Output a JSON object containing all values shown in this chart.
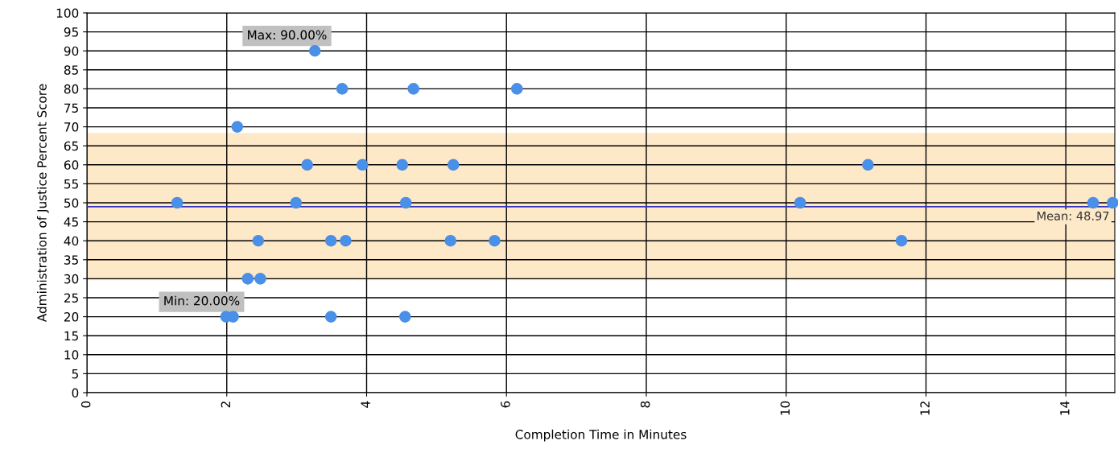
{
  "chart_data": {
    "type": "scatter",
    "xlabel": "Completion Time in Minutes",
    "ylabel": "Administration of Justice Percent Score",
    "x": [
      3.26,
      3.65,
      4.67,
      6.15,
      2.15,
      3.15,
      3.94,
      4.51,
      5.24,
      11.17,
      1.29,
      2.99,
      4.56,
      10.2,
      14.39,
      14.67,
      2.45,
      3.49,
      3.7,
      5.2,
      5.83,
      11.65,
      2.3,
      2.48,
      1.99,
      2.09,
      3.49,
      4.55
    ],
    "values": [
      90,
      80,
      80,
      80,
      70,
      60,
      60,
      60,
      60,
      60,
      50,
      50,
      50,
      50,
      50,
      50,
      40,
      40,
      40,
      40,
      40,
      40,
      30,
      30,
      20,
      20,
      20,
      20
    ],
    "color": "#4a8fe8",
    "marker": "circle",
    "xlim": [
      0,
      14.7
    ],
    "xticks": [
      0,
      2,
      4,
      6,
      8,
      10,
      12,
      14
    ],
    "ylim": [
      0,
      100
    ],
    "yticks": [
      0,
      5,
      10,
      15,
      20,
      25,
      30,
      35,
      40,
      45,
      50,
      55,
      60,
      65,
      70,
      75,
      80,
      85,
      90,
      95,
      100
    ],
    "grid": true,
    "ref_lines": [
      {
        "axis": "y",
        "value": 48.97,
        "label": "Mean: 48.97",
        "color": "#3333bb",
        "line_style": "solid"
      }
    ],
    "bands": [
      {
        "axis": "y",
        "from": 29.6,
        "to": 68.4,
        "color": "#fde8c8"
      }
    ],
    "annotations": [
      {
        "text": "Max: 90.00%",
        "x": 3.26,
        "y": 90
      },
      {
        "text": "Min: 20.00%",
        "x": 2.04,
        "y": 20
      }
    ]
  }
}
